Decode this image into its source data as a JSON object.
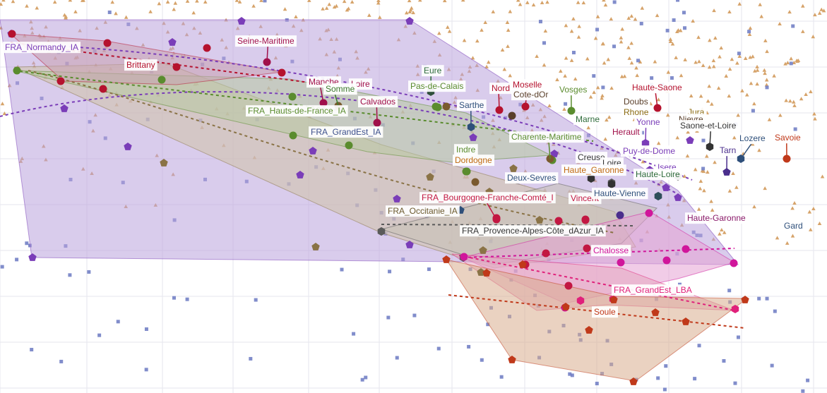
{
  "chart_data": {
    "type": "scatter",
    "title": "",
    "xlabel": "",
    "ylabel": "",
    "grid": true,
    "background_points": {
      "triangle_color": "#d6a36a",
      "square_color": "#6b79c2"
    },
    "groups": [
      {
        "name": "FRA_Normandy_IA",
        "color": "#7a3db8",
        "fill": "#b9a3dc",
        "marker": "pentagon"
      },
      {
        "name": "Brittany",
        "color": "#b5122e",
        "fill": "#c9a0b0",
        "marker": "circle"
      },
      {
        "name": "FRA_Hauts-de-France_IA",
        "color": "#5a8c2e",
        "fill": "#b7c9a0",
        "marker": "circle"
      },
      {
        "name": "FRA_GrandEst_IA",
        "color": "#8a7346",
        "fill": "#cfc3a8",
        "marker": "pentagon"
      },
      {
        "name": "FRA_Bourgogne-Franche-Comté_I",
        "color": "#c21742",
        "fill": "#d79aa8",
        "marker": "circle"
      },
      {
        "name": "FRA_Occitanie_IA",
        "color": "#8a7346",
        "fill": "#cfc3a8",
        "marker": "pentagon"
      },
      {
        "name": "FRA_Provence-Alpes-Côte_dAzur_IA",
        "color": "#5a5a5a",
        "fill": "#c7c1b6",
        "marker": "hexagon"
      },
      {
        "name": "Chalosse",
        "color": "#d0169b",
        "fill": "#e6a3d3",
        "marker": "circle"
      },
      {
        "name": "FRA_GrandEst_LBA",
        "color": "#e0207a",
        "fill": "#e3a6c0",
        "marker": "hexagon"
      },
      {
        "name": "Soule",
        "color": "#c0391a",
        "fill": "#d9ad8e",
        "marker": "pentagon"
      }
    ],
    "labels": [
      {
        "text": "Seine-Maritime",
        "color": "#a0104a"
      },
      {
        "text": "FRA_Normandy_IA",
        "color": "#7a3db8"
      },
      {
        "text": "Brittany",
        "color": "#b5122e"
      },
      {
        "text": "Manche",
        "color": "#a0104a"
      },
      {
        "text": "Loire",
        "color": "#a0104a"
      },
      {
        "text": "Somme",
        "color": "#3d7a2e"
      },
      {
        "text": "Calvados",
        "color": "#a0104a"
      },
      {
        "text": "FRA_Hauts-de-France_IA",
        "color": "#5a8c2e"
      },
      {
        "text": "FRA_GrandEst_IA",
        "color": "#3c4f8c"
      },
      {
        "text": "Eure",
        "color": "#2e6b3a"
      },
      {
        "text": "Pas-de-Calais",
        "color": "#5a8c2e"
      },
      {
        "text": "Sarthe",
        "color": "#2e4f7a"
      },
      {
        "text": "Nord",
        "color": "#b5122e"
      },
      {
        "text": "Moselle",
        "color": "#b5122e"
      },
      {
        "text": "Cote-dOr",
        "color": "#5a3f2a"
      },
      {
        "text": "Vosges",
        "color": "#5a8c2e"
      },
      {
        "text": "Marne",
        "color": "#2e6b3a"
      },
      {
        "text": "Haute-Saone",
        "color": "#b5122e"
      },
      {
        "text": "Doubs",
        "color": "#5a3f2a"
      },
      {
        "text": "Rhone",
        "color": "#8a6a10"
      },
      {
        "text": "Jura",
        "color": "#8a6a10"
      },
      {
        "text": "Nievre",
        "color": "#5a3f2a"
      },
      {
        "text": "Yonne",
        "color": "#7a3db8"
      },
      {
        "text": "Saone-et-Loire",
        "color": "#333333"
      },
      {
        "text": "Herault",
        "color": "#a0104a"
      },
      {
        "text": "Lozere",
        "color": "#2e4f7a"
      },
      {
        "text": "Savoie",
        "color": "#c0391a"
      },
      {
        "text": "Tarn",
        "color": "#4a2e8c"
      },
      {
        "text": "Charente-Maritime",
        "color": "#5a8c2e"
      },
      {
        "text": "Indre",
        "color": "#5a8c2e"
      },
      {
        "text": "Dordogne",
        "color": "#c06a10"
      },
      {
        "text": "Creuse",
        "color": "#333333"
      },
      {
        "text": "Loire",
        "color": "#333333"
      },
      {
        "text": "Puy-de-Dome",
        "color": "#7a3db8"
      },
      {
        "text": "Haute_Garonne",
        "color": "#c06a10"
      },
      {
        "text": "Isere",
        "color": "#7a3db8"
      },
      {
        "text": "Haute-Loire",
        "color": "#2e6b3a"
      },
      {
        "text": "Deux-Sevres",
        "color": "#2e4f7a"
      },
      {
        "text": "FRA_Bourgogne-Franche-Comté_I",
        "color": "#c21742"
      },
      {
        "text": "Vincent",
        "color": "#c21742"
      },
      {
        "text": "Haute-Vienne",
        "color": "#2e4f7a"
      },
      {
        "text": "FRA_Occitanie_IA",
        "color": "#6b5a2e"
      },
      {
        "text": "FRA_Provence-Alpes-Côte_dAzur_IA",
        "color": "#333333"
      },
      {
        "text": "Haute-Garonne",
        "color": "#8a1a6a"
      },
      {
        "text": "Gard",
        "color": "#2e4f7a"
      },
      {
        "text": "Chalosse",
        "color": "#d0169b"
      },
      {
        "text": "FRA_GrandEst_LBA",
        "color": "#e0207a"
      },
      {
        "text": "Soule",
        "color": "#c0391a"
      }
    ]
  }
}
